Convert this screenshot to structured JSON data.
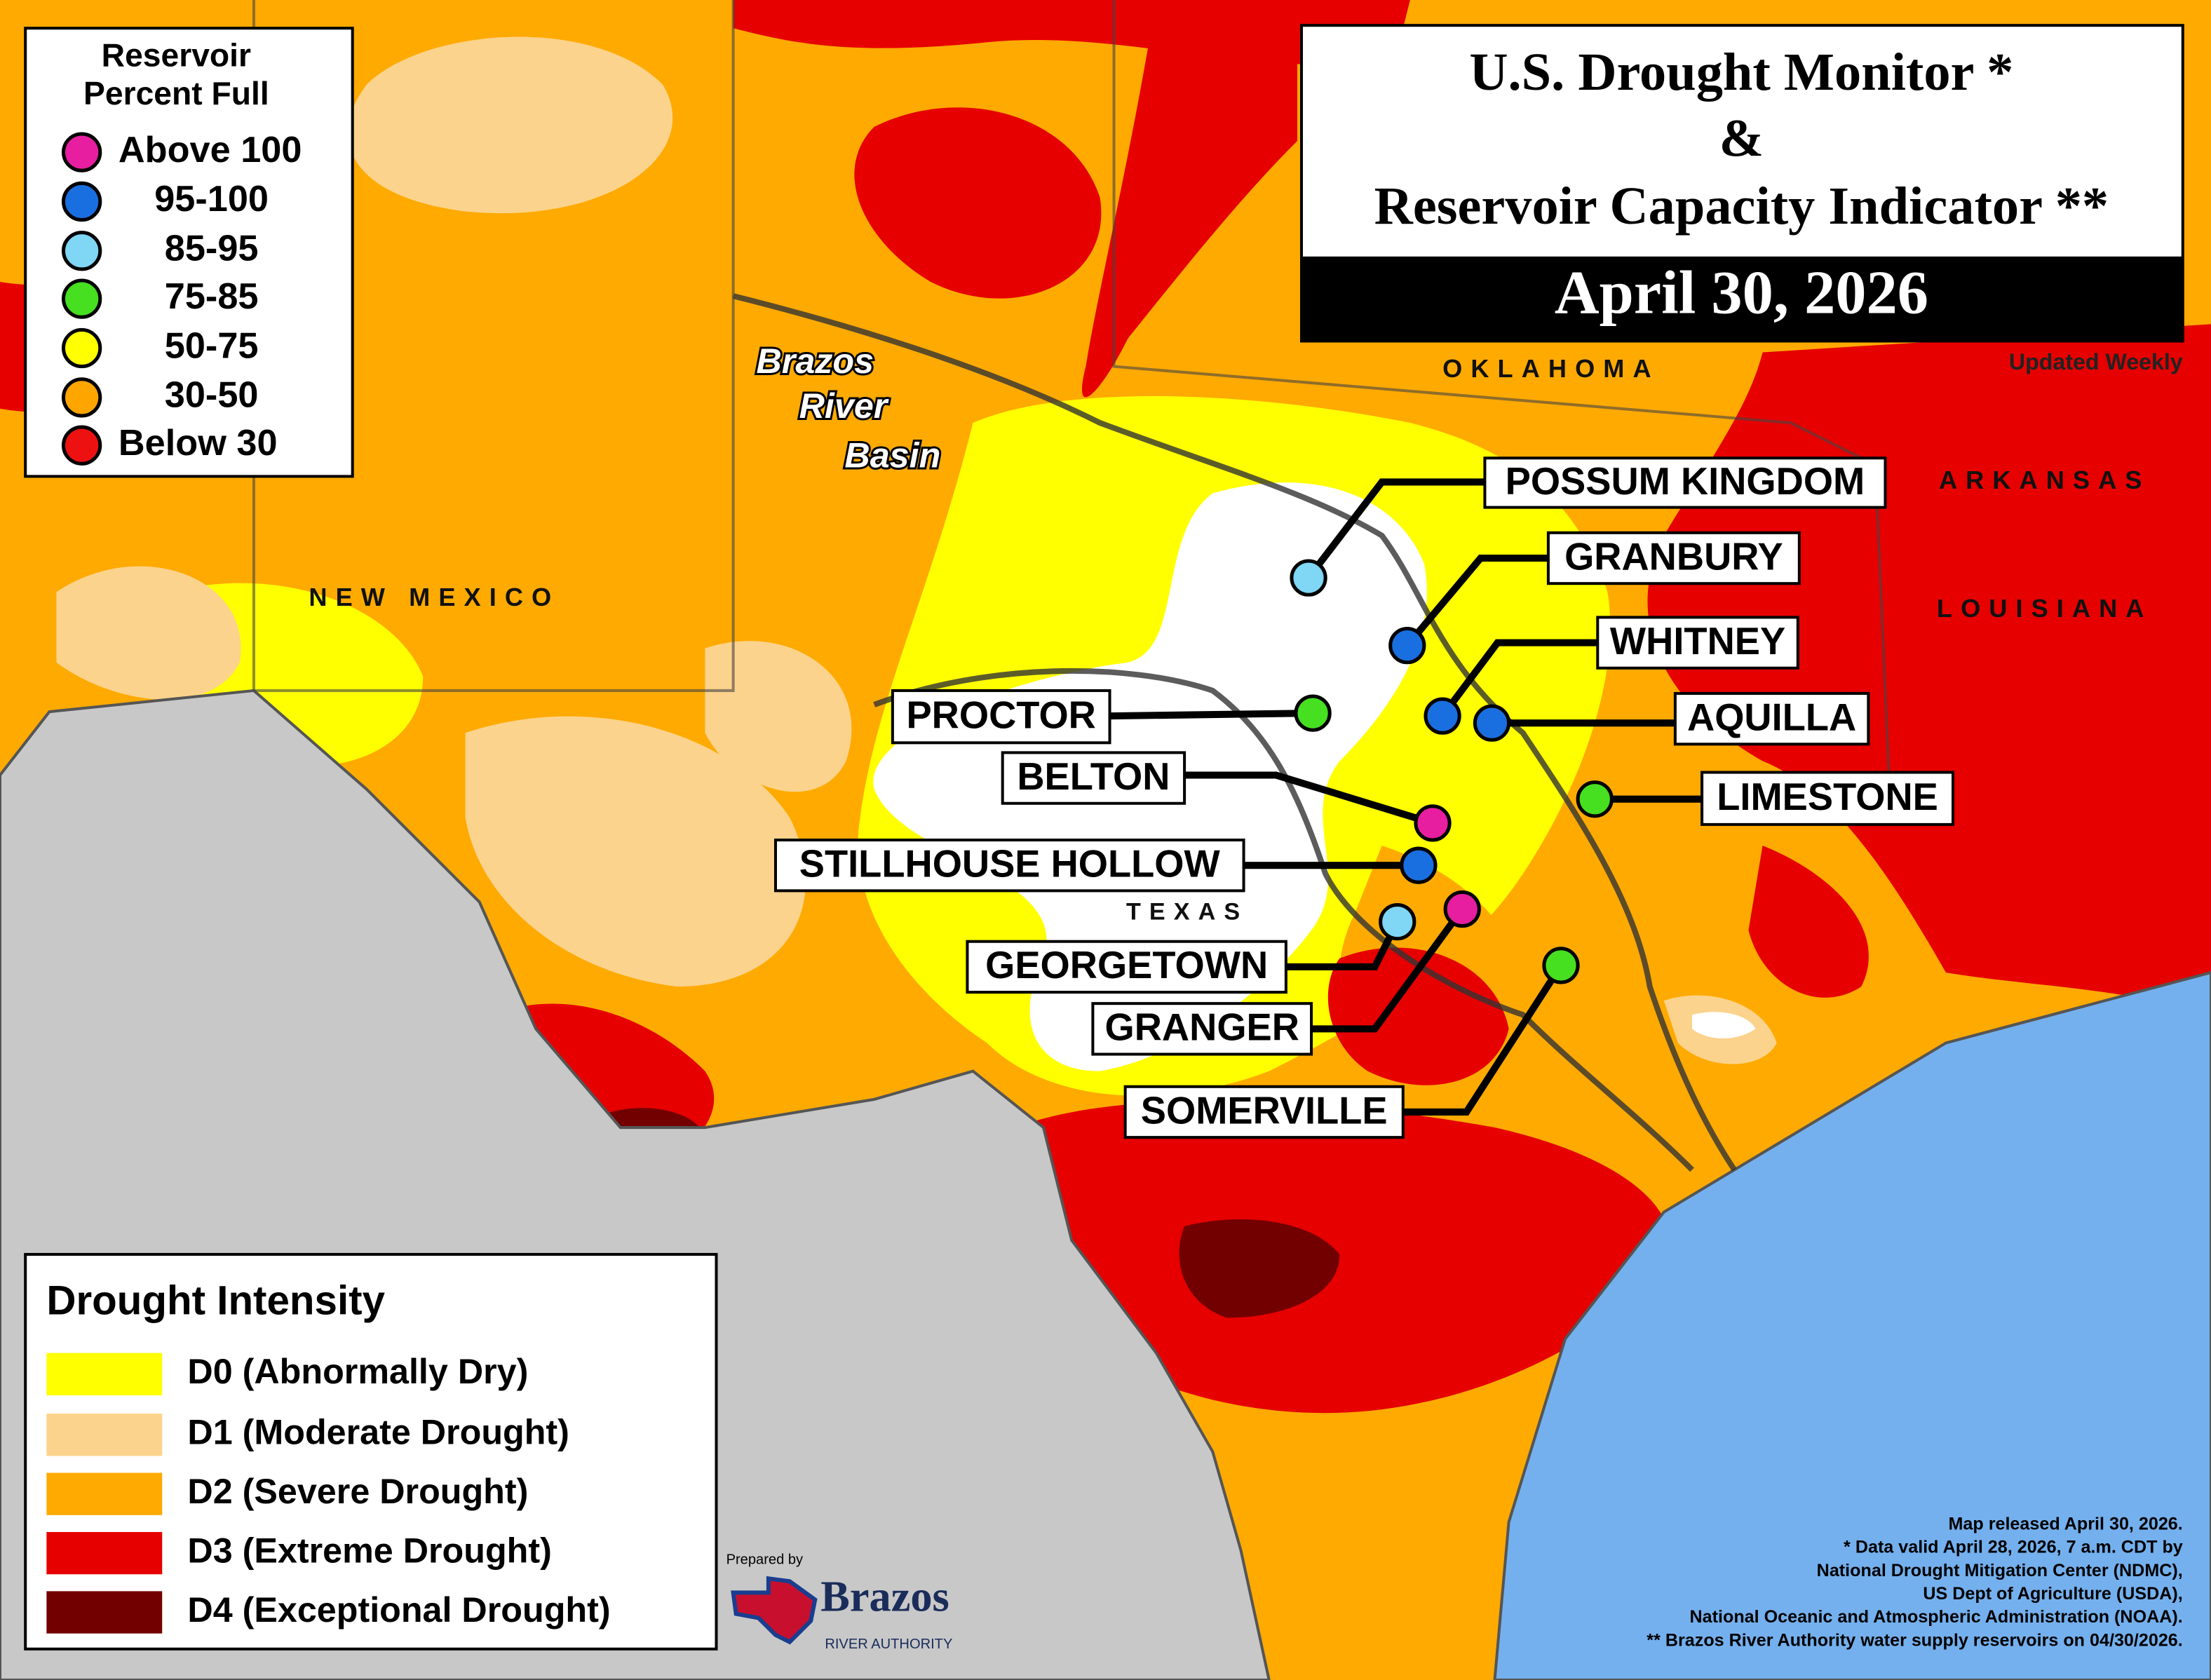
{
  "title": {
    "line1": "U.S. Drought Monitor *",
    "line2": "&",
    "line3": "Reservoir Capacity Indicator **",
    "date": "April 30, 2026",
    "note": "Updated Weekly"
  },
  "reservoir_legend": {
    "title": [
      "Reservoir",
      "Percent Full"
    ],
    "items": [
      {
        "label": "Above 100",
        "color": "#e81ea0"
      },
      {
        "label": "95-100",
        "color": "#1a6fe0"
      },
      {
        "label": "85-95",
        "color": "#7fd6f5"
      },
      {
        "label": "75-85",
        "color": "#46e020"
      },
      {
        "label": "50-75",
        "color": "#ffff00"
      },
      {
        "label": "30-50",
        "color": "#ffa500"
      },
      {
        "label": "Below 30",
        "color": "#ee1111"
      }
    ]
  },
  "drought_legend": {
    "title": "Drought Intensity",
    "items": [
      {
        "label": "D0 (Abnormally Dry)",
        "color": "#ffff00"
      },
      {
        "label": "D1 (Moderate Drought)",
        "color": "#fcd38c"
      },
      {
        "label": "D2 (Severe Drought)",
        "color": "#ffaa00"
      },
      {
        "label": "D3 (Extreme Drought)",
        "color": "#e60000"
      },
      {
        "label": "D4 (Exceptional Drought)",
        "color": "#730000"
      }
    ]
  },
  "places": [
    "NEW MEXICO",
    "OKLAHOMA",
    "ARKANSAS",
    "LOUISIANA",
    "TEXAS"
  ],
  "basin_label": [
    "Brazos",
    "River",
    "Basin"
  ],
  "reservoirs": [
    {
      "name": "POSSUM KINGDOM",
      "category": 2
    },
    {
      "name": "GRANBURY",
      "category": 1
    },
    {
      "name": "WHITNEY",
      "category": 1
    },
    {
      "name": "AQUILLA",
      "category": 1
    },
    {
      "name": "LIMESTONE",
      "category": 3
    },
    {
      "name": "PROCTOR",
      "category": 3
    },
    {
      "name": "BELTON",
      "category": 0
    },
    {
      "name": "STILLHOUSE HOLLOW",
      "category": 1
    },
    {
      "name": "GEORGETOWN",
      "category": 2
    },
    {
      "name": "GRANGER",
      "category": 0
    },
    {
      "name": "SOMERVILLE",
      "category": 3
    }
  ],
  "credits": [
    "Map released April 30, 2026.",
    "* Data valid April 28, 2026, 7 a.m. CDT by",
    "National Drought Mitigation Center (NDMC),",
    "US Dept of Agriculture (USDA),",
    "National Oceanic and Atmospheric Administration (NOAA).",
    "** Brazos River Authority water supply reservoirs on 04/30/2026."
  ],
  "logo": {
    "prepared": "Prepared by",
    "name": "Brazos",
    "sub": "RIVER AUTHORITY"
  }
}
